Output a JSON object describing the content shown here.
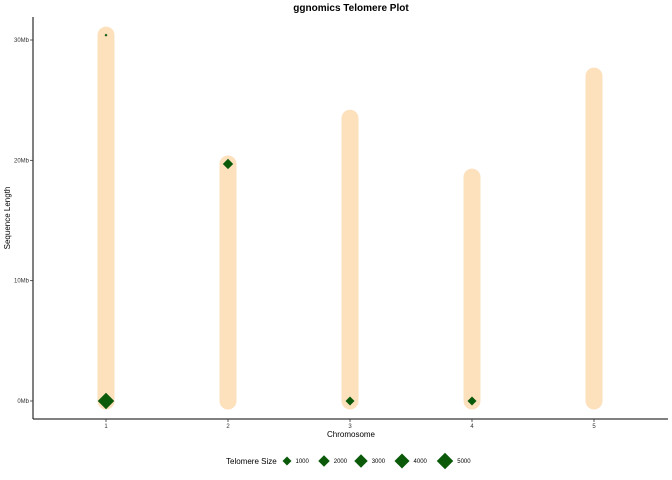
{
  "chart_data": {
    "type": "scatter",
    "title": "ggnomics Telomere Plot",
    "xlabel": "Chromosome",
    "ylabel": "Sequence Length",
    "x_ticks": [
      "1",
      "2",
      "3",
      "4",
      "5"
    ],
    "y_ticks": [
      {
        "value": 0,
        "label": "0Mb"
      },
      {
        "value": 10,
        "label": "10Mb"
      },
      {
        "value": 20,
        "label": "20Mb"
      },
      {
        "value": 30,
        "label": "30Mb"
      }
    ],
    "ylim": [
      -1.5,
      32
    ],
    "y_unit": "Mb",
    "chromosomes": [
      {
        "name": "1",
        "length": 30.4
      },
      {
        "name": "2",
        "length": 19.7
      },
      {
        "name": "3",
        "length": 23.5
      },
      {
        "name": "4",
        "length": 18.6
      },
      {
        "name": "5",
        "length": 27.0
      }
    ],
    "telomeres": [
      {
        "chromosome": "1",
        "position": 0,
        "size": 5000
      },
      {
        "chromosome": "1",
        "position": 30.4,
        "size": 200
      },
      {
        "chromosome": "2",
        "position": 19.7,
        "size": 1500
      },
      {
        "chromosome": "3",
        "position": 0,
        "size": 1000
      },
      {
        "chromosome": "4",
        "position": 0,
        "size": 1000
      }
    ],
    "legend": {
      "title": "Telomere Size",
      "entries": [
        1000,
        2000,
        3000,
        4000,
        5000
      ],
      "position": "bottom"
    },
    "colors": {
      "chromosome_bar": "#fde0bc",
      "telomere_point": "#0a5a0a"
    },
    "grid": false
  }
}
